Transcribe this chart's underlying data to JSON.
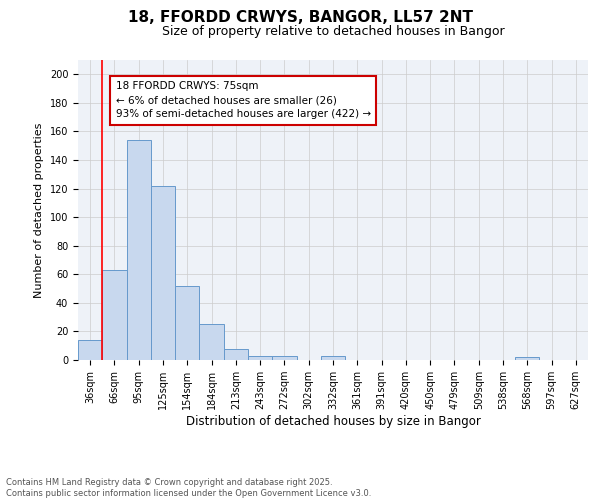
{
  "title1": "18, FFORDD CRWYS, BANGOR, LL57 2NT",
  "title2": "Size of property relative to detached houses in Bangor",
  "xlabel": "Distribution of detached houses by size in Bangor",
  "ylabel": "Number of detached properties",
  "categories": [
    "36sqm",
    "66sqm",
    "95sqm",
    "125sqm",
    "154sqm",
    "184sqm",
    "213sqm",
    "243sqm",
    "272sqm",
    "302sqm",
    "332sqm",
    "361sqm",
    "391sqm",
    "420sqm",
    "450sqm",
    "479sqm",
    "509sqm",
    "538sqm",
    "568sqm",
    "597sqm",
    "627sqm"
  ],
  "values": [
    14,
    63,
    154,
    122,
    52,
    25,
    8,
    3,
    3,
    0,
    3,
    0,
    0,
    0,
    0,
    0,
    0,
    0,
    2,
    0,
    0
  ],
  "bar_color": "#c8d8ee",
  "bar_edge_color": "#6699cc",
  "red_line_bar_index": 1,
  "annotation_text": "18 FFORDD CRWYS: 75sqm\n← 6% of detached houses are smaller (26)\n93% of semi-detached houses are larger (422) →",
  "annotation_box_facecolor": "#ffffff",
  "annotation_box_edgecolor": "#cc0000",
  "footnote": "Contains HM Land Registry data © Crown copyright and database right 2025.\nContains public sector information licensed under the Open Government Licence v3.0.",
  "ylim": [
    0,
    210
  ],
  "yticks": [
    0,
    20,
    40,
    60,
    80,
    100,
    120,
    140,
    160,
    180,
    200
  ],
  "title1_fontsize": 11,
  "title2_fontsize": 9,
  "xlabel_fontsize": 8.5,
  "ylabel_fontsize": 8,
  "tick_fontsize": 7,
  "footnote_fontsize": 6,
  "annotation_fontsize": 7.5,
  "grid_color": "#cccccc",
  "bg_color": "#eef2f8"
}
